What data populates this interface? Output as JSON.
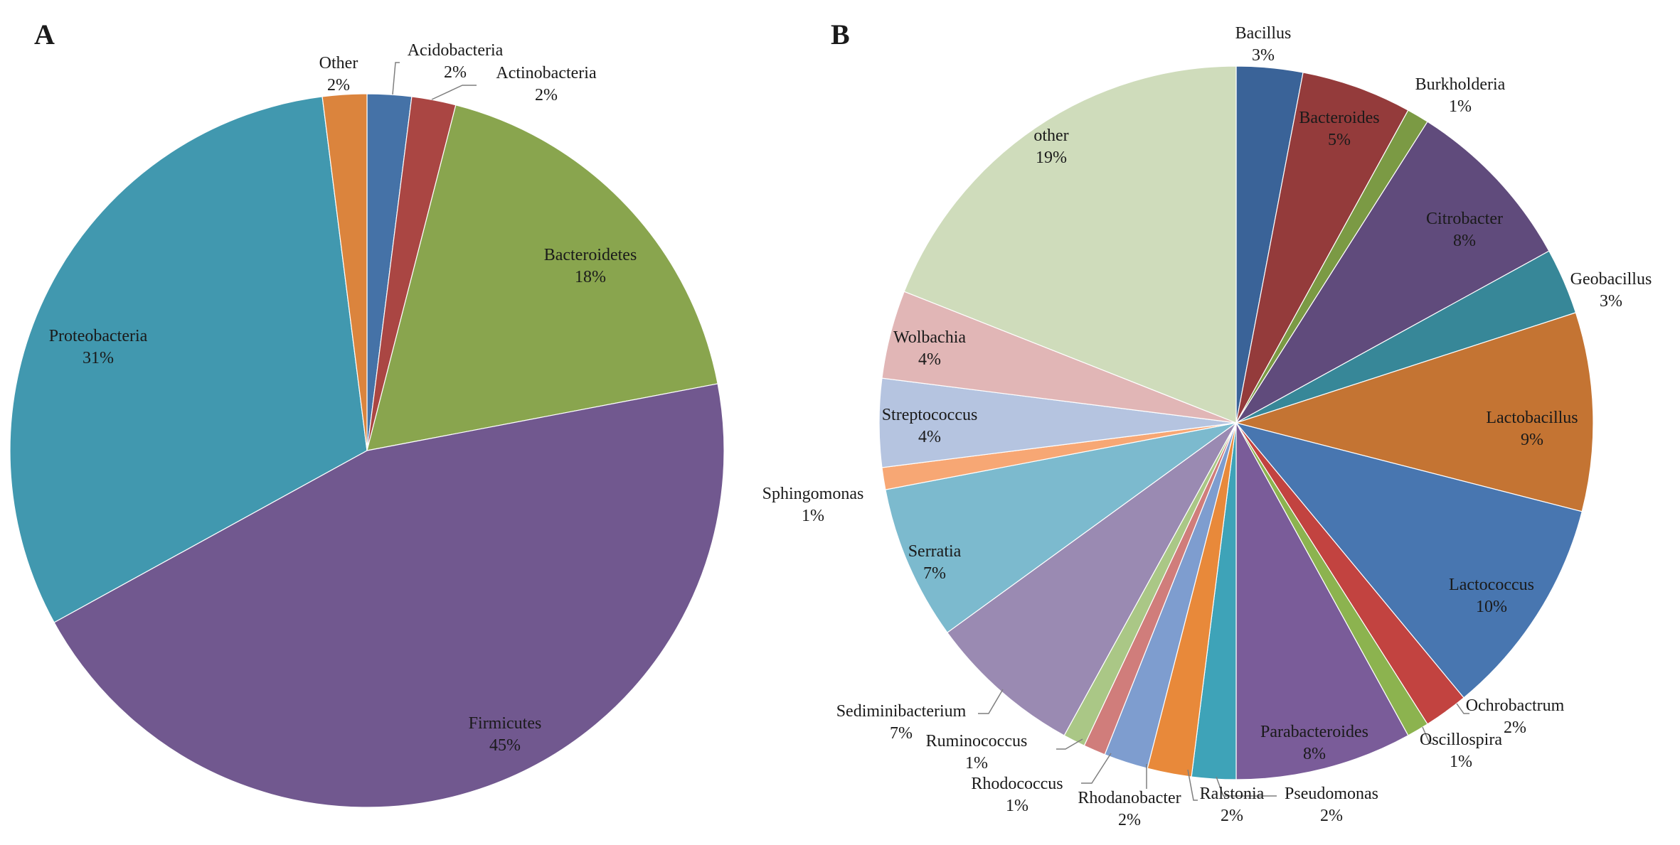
{
  "chart_data": [
    {
      "type": "pie",
      "panel_label": "A",
      "slices": [
        {
          "name": "Acidobacteria",
          "value": 2,
          "label": "2%",
          "color": "#4572a7"
        },
        {
          "name": "Actinobacteria",
          "value": 2,
          "label": "2%",
          "color": "#aa4643"
        },
        {
          "name": "Bacteroidetes",
          "value": 18,
          "label": "18%",
          "color": "#89a54e"
        },
        {
          "name": "Firmicutes",
          "value": 45,
          "label": "45%",
          "color": "#71588f"
        },
        {
          "name": "Proteobacteria",
          "value": 31,
          "label": "31%",
          "color": "#4198af"
        },
        {
          "name": "Other",
          "value": 2,
          "label": "2%",
          "color": "#db843d"
        }
      ]
    },
    {
      "type": "pie",
      "panel_label": "B",
      "slices": [
        {
          "name": "Bacillus",
          "value": 3,
          "label": "3%",
          "color": "#3a6398"
        },
        {
          "name": "Bacteroides",
          "value": 5,
          "label": "5%",
          "color": "#943b3b"
        },
        {
          "name": "Burkholderia",
          "value": 1,
          "label": "1%",
          "color": "#7b9a44"
        },
        {
          "name": "Citrobacter",
          "value": 8,
          "label": "8%",
          "color": "#604b7c"
        },
        {
          "name": "Geobacillus",
          "value": 3,
          "label": "3%",
          "color": "#378798"
        },
        {
          "name": "Lactobacillus",
          "value": 9,
          "label": "9%",
          "color": "#c47433"
        },
        {
          "name": "Lactococcus",
          "value": 10,
          "label": "10%",
          "color": "#4876b0"
        },
        {
          "name": "Ochrobactrum",
          "value": 2,
          "label": "2%",
          "color": "#c24340"
        },
        {
          "name": "Oscillospira",
          "value": 1,
          "label": "1%",
          "color": "#8cb34f"
        },
        {
          "name": "Parabacteroides",
          "value": 8,
          "label": "8%",
          "color": "#7a5c99"
        },
        {
          "name": "Pseudomonas",
          "value": 2,
          "label": "2%",
          "color": "#3ea3b8"
        },
        {
          "name": "Ralstonia",
          "value": 2,
          "label": "2%",
          "color": "#e8893a"
        },
        {
          "name": "Rhodanobacter",
          "value": 2,
          "label": "2%",
          "color": "#7e9dcf"
        },
        {
          "name": "Rhodococcus",
          "value": 1,
          "label": "1%",
          "color": "#d07d7b"
        },
        {
          "name": "Ruminococcus",
          "value": 1,
          "label": "1%",
          "color": "#aac786"
        },
        {
          "name": "Sediminibacterium",
          "value": 7,
          "label": "7%",
          "color": "#9a8ab2"
        },
        {
          "name": "Serratia",
          "value": 7,
          "label": "7%",
          "color": "#7cbace"
        },
        {
          "name": "Sphingomonas",
          "value": 1,
          "label": "1%",
          "color": "#f7a774"
        },
        {
          "name": "Streptococcus",
          "value": 4,
          "label": "4%",
          "color": "#b5c4e0"
        },
        {
          "name": "Wolbachia",
          "value": 4,
          "label": "4%",
          "color": "#e1b6b6"
        },
        {
          "name": "other",
          "value": 19,
          "label": "19%",
          "color": "#cfdcbb"
        }
      ]
    }
  ]
}
